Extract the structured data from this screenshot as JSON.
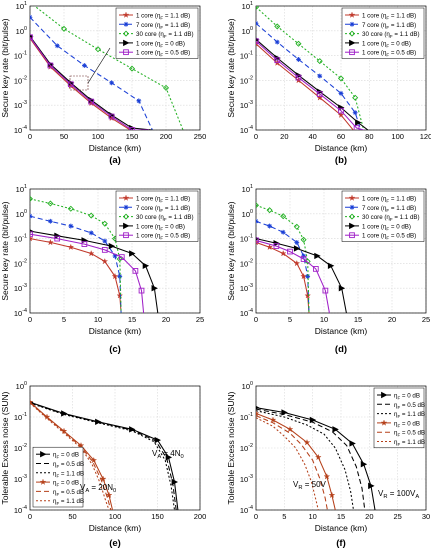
{
  "colors": {
    "red": "#c0392b",
    "blue": "#1a3fd6",
    "green": "#22b022",
    "black": "#000000",
    "purple": "#a020c8",
    "darkred": "#b5401a"
  },
  "chart_data": [
    {
      "panel": "(a)",
      "type": "line",
      "log_y": true,
      "grid": true,
      "legend": "top-right",
      "ylabel": "Secure key rate (bit/pulse)",
      "xlabel": "Distance (km)",
      "xlim": [
        0,
        250
      ],
      "ylim_exp": [
        -4,
        1
      ],
      "xticks": [
        "0",
        "50",
        "100",
        "150",
        "200",
        "250"
      ],
      "yticks": [
        "10^-4",
        "10^-3",
        "10^-2",
        "10^-1",
        "10^0",
        "10^1"
      ],
      "series": [
        {
          "name": "1 core (η_F = 1.1 dB)",
          "color": "#c0392b",
          "marker": "star",
          "dash": "",
          "x": [
            0,
            30,
            60,
            90,
            120,
            150,
            170
          ],
          "y": [
            0.5,
            0.035,
            0.006,
            0.0012,
            0.0003,
            9e-05,
            0.0001
          ]
        },
        {
          "name": "7 core (η_F = 1.1 dB)",
          "color": "#1a3fd6",
          "marker": "asterisk",
          "dash": "5,3",
          "x": [
            0,
            40,
            80,
            120,
            160,
            180
          ],
          "y": [
            3.5,
            0.25,
            0.04,
            0.008,
            0.0015,
            0.0001
          ]
        },
        {
          "name": "30 core (η_F = 1.1 dB)",
          "color": "#22b022",
          "marker": "diamond",
          "dash": "2,2",
          "x": [
            0,
            50,
            100,
            150,
            200,
            225
          ],
          "y": [
            14,
            1.2,
            0.18,
            0.03,
            0.005,
            0.0001
          ]
        },
        {
          "name": "1 core (η_F = 0 dB)",
          "color": "#000000",
          "marker": "triangle",
          "dash": "",
          "x": [
            0,
            30,
            60,
            90,
            120,
            150,
            180
          ],
          "y": [
            0.6,
            0.045,
            0.008,
            0.0016,
            0.0004,
            0.00012,
            0.0001
          ]
        },
        {
          "name": "1 core (η_F = 0.5 dB)",
          "color": "#a020c8",
          "marker": "square",
          "dash": "",
          "x": [
            0,
            30,
            60,
            90,
            120,
            150,
            175
          ],
          "y": [
            0.55,
            0.04,
            0.007,
            0.0014,
            0.00035,
            0.0001,
            0.0001
          ]
        }
      ]
    },
    {
      "panel": "(b)",
      "type": "line",
      "log_y": true,
      "grid": true,
      "legend": "top-right",
      "ylabel": "Secure key rate (bit/pulse)",
      "xlabel": "Distance (km)",
      "xlim": [
        0,
        120
      ],
      "ylim_exp": [
        -4,
        1
      ],
      "xticks": [
        "0",
        "20",
        "40",
        "60",
        "80",
        "100",
        "120"
      ],
      "yticks": [
        "10^-4",
        "10^-3",
        "10^-2",
        "10^-1",
        "10^0",
        "10^1"
      ],
      "series": [
        {
          "name": "1 core (η_F = 1.1 dB)",
          "color": "#c0392b",
          "marker": "star",
          "dash": "",
          "x": [
            0,
            15,
            30,
            45,
            60,
            70,
            73
          ],
          "y": [
            0.3,
            0.05,
            0.01,
            0.002,
            0.0004,
            8e-05,
            0.0001
          ]
        },
        {
          "name": "7 core (η_F = 1.1 dB)",
          "color": "#1a3fd6",
          "marker": "asterisk",
          "dash": "5,3",
          "x": [
            0,
            15,
            30,
            45,
            60,
            70,
            74
          ],
          "y": [
            2,
            0.35,
            0.07,
            0.015,
            0.003,
            0.0005,
            0.0001
          ]
        },
        {
          "name": "30 core (η_F = 1.1 dB)",
          "color": "#22b022",
          "marker": "diamond",
          "dash": "2,2",
          "x": [
            0,
            15,
            30,
            45,
            60,
            70,
            76
          ],
          "y": [
            9,
            1.5,
            0.3,
            0.06,
            0.012,
            0.002,
            0.0001
          ]
        },
        {
          "name": "1 core (η_F = 0 dB)",
          "color": "#000000",
          "marker": "triangle",
          "dash": "",
          "x": [
            0,
            15,
            30,
            45,
            60,
            72,
            79
          ],
          "y": [
            0.45,
            0.08,
            0.016,
            0.0035,
            0.0008,
            0.0002,
            0.0001
          ]
        },
        {
          "name": "1 core (η_F = 0.5 dB)",
          "color": "#a020c8",
          "marker": "square",
          "dash": "",
          "x": [
            0,
            15,
            30,
            45,
            60,
            71,
            76
          ],
          "y": [
            0.38,
            0.065,
            0.013,
            0.0028,
            0.0006,
            0.00012,
            0.0001
          ]
        }
      ]
    },
    {
      "panel": "(c)",
      "type": "line",
      "log_y": true,
      "grid": true,
      "legend": "top-right",
      "ylabel": "Secure key rate (bit/pulse)",
      "xlabel": "Distance (km)",
      "xlim": [
        0,
        25
      ],
      "ylim_exp": [
        -4,
        1
      ],
      "xticks": [
        "0",
        "5",
        "10",
        "15",
        "20",
        "25"
      ],
      "yticks": [
        "10^-4",
        "10^-3",
        "10^-2",
        "10^-1",
        "10^0",
        "10^1"
      ],
      "series": [
        {
          "name": "1 core (η_F = 1.1 dB)",
          "color": "#c0392b",
          "marker": "star",
          "dash": "",
          "x": [
            0,
            3,
            6,
            9,
            11,
            12.5,
            13.2,
            13.4
          ],
          "y": [
            0.1,
            0.07,
            0.045,
            0.025,
            0.012,
            0.003,
            0.0005,
            0.0001
          ]
        },
        {
          "name": "7 core (η_F = 1.1 dB)",
          "color": "#1a3fd6",
          "marker": "asterisk",
          "dash": "5,3",
          "x": [
            0,
            3,
            6,
            9,
            11,
            12.5,
            13.2,
            13.4
          ],
          "y": [
            0.8,
            0.5,
            0.32,
            0.17,
            0.08,
            0.02,
            0.003,
            0.0001
          ]
        },
        {
          "name": "30 core (η_F = 1.1 dB)",
          "color": "#22b022",
          "marker": "diamond",
          "dash": "2,2",
          "x": [
            0,
            3,
            6,
            9,
            11,
            12.5,
            13.2,
            13.4
          ],
          "y": [
            4,
            2.6,
            1.6,
            0.85,
            0.4,
            0.1,
            0.015,
            0.0001
          ]
        },
        {
          "name": "1 core (η_F = 0 dB)",
          "color": "#000000",
          "marker": "triangle",
          "dash": "",
          "x": [
            0,
            4,
            8,
            12,
            15,
            17,
            18.3,
            18.8
          ],
          "y": [
            0.2,
            0.13,
            0.085,
            0.05,
            0.025,
            0.008,
            0.001,
            0.0001
          ]
        },
        {
          "name": "1 core (η_F = 0.5 dB)",
          "color": "#a020c8",
          "marker": "square",
          "dash": "",
          "x": [
            0,
            4,
            8,
            11,
            13.5,
            15.5,
            16.4,
            16.7
          ],
          "y": [
            0.15,
            0.1,
            0.06,
            0.035,
            0.018,
            0.005,
            0.0008,
            0.0001
          ]
        }
      ]
    },
    {
      "panel": "(d)",
      "type": "line",
      "log_y": true,
      "grid": true,
      "legend": "top-right",
      "ylabel": "Secure key rate (bit/pulse)",
      "xlabel": "Distance (km)",
      "xlim": [
        0,
        25
      ],
      "ylim_exp": [
        -4,
        1
      ],
      "xticks": [
        "0",
        "5",
        "10",
        "15",
        "20",
        "25"
      ],
      "yticks": [
        "10^-4",
        "10^-3",
        "10^-2",
        "10^-1",
        "10^0",
        "10^1"
      ],
      "series": [
        {
          "name": "1 core (η_F = 1.1 dB)",
          "color": "#c0392b",
          "marker": "star",
          "dash": "",
          "x": [
            0,
            2,
            4,
            6,
            7,
            7.6,
            7.8
          ],
          "y": [
            0.07,
            0.045,
            0.025,
            0.01,
            0.003,
            0.0005,
            0.0001
          ]
        },
        {
          "name": "7 core (η_F = 1.1 dB)",
          "color": "#1a3fd6",
          "marker": "asterisk",
          "dash": "5,3",
          "x": [
            0,
            2,
            4,
            6,
            7,
            7.6,
            7.8
          ],
          "y": [
            0.5,
            0.32,
            0.18,
            0.07,
            0.02,
            0.003,
            0.0001
          ]
        },
        {
          "name": "30 core (η_F = 1.1 dB)",
          "color": "#22b022",
          "marker": "diamond",
          "dash": "2,2",
          "x": [
            0,
            2,
            4,
            6,
            7,
            7.6,
            7.8
          ],
          "y": [
            2.2,
            1.4,
            0.8,
            0.3,
            0.09,
            0.012,
            0.0001
          ]
        },
        {
          "name": "1 core (η_F = 0 dB)",
          "color": "#000000",
          "marker": "triangle",
          "dash": "",
          "x": [
            0,
            3,
            6,
            9,
            11,
            12.6,
            13.3
          ],
          "y": [
            0.1,
            0.065,
            0.04,
            0.02,
            0.008,
            0.001,
            0.0001
          ]
        },
        {
          "name": "1 core (η_F = 0.5 dB)",
          "color": "#a020c8",
          "marker": "square",
          "dash": "",
          "x": [
            0,
            3,
            5,
            7,
            8.8,
            10.2,
            10.8
          ],
          "y": [
            0.085,
            0.05,
            0.03,
            0.015,
            0.006,
            0.0008,
            0.0001
          ]
        }
      ]
    },
    {
      "panel": "(e)",
      "type": "line",
      "log_y": true,
      "grid": true,
      "legend": "bottom-left",
      "ylabel": "Tolerable Excess noise (SUN)",
      "xlabel": "Distance (km)",
      "xlim": [
        0,
        200
      ],
      "ylim_exp": [
        -4,
        0
      ],
      "xticks": [
        "0",
        "50",
        "100",
        "150",
        "200"
      ],
      "yticks": [
        "10^-4",
        "10^-3",
        "10^-2",
        "10^-1",
        "10^0"
      ],
      "annotations": [
        "V_A = 4N_0",
        "V_A = 20N_0"
      ],
      "series": [
        {
          "name": "η_F = 0 dB",
          "color": "#000000",
          "marker": "triangle",
          "dash": "",
          "x": [
            0,
            40,
            80,
            120,
            150,
            163,
            170,
            174
          ],
          "y": [
            0.3,
            0.13,
            0.07,
            0.04,
            0.018,
            0.005,
            0.0008,
            0.0001
          ]
        },
        {
          "name": "η_F = 0.5 dB",
          "color": "#000000",
          "marker": "",
          "dash": "5,3",
          "x": [
            0,
            40,
            80,
            120,
            148,
            161,
            168,
            172
          ],
          "y": [
            0.29,
            0.125,
            0.068,
            0.038,
            0.017,
            0.0045,
            0.0007,
            0.0001
          ]
        },
        {
          "name": "η_F = 1.1 dB",
          "color": "#000000",
          "marker": "",
          "dash": "2,2",
          "x": [
            0,
            40,
            80,
            120,
            146,
            159,
            166,
            170
          ],
          "y": [
            0.28,
            0.12,
            0.065,
            0.036,
            0.016,
            0.004,
            0.0006,
            0.0001
          ]
        },
        {
          "name": "η_F = 0 dB",
          "color": "#b5401a",
          "marker": "star",
          "dash": "",
          "x": [
            0,
            20,
            40,
            60,
            75,
            86,
            93,
            97
          ],
          "y": [
            0.3,
            0.1,
            0.035,
            0.012,
            0.004,
            0.001,
            0.0003,
            0.0001
          ]
        },
        {
          "name": "η_F = 0.5 dB",
          "color": "#b5401a",
          "marker": "",
          "dash": "5,3",
          "x": [
            0,
            20,
            40,
            60,
            74,
            84,
            91,
            95
          ],
          "y": [
            0.29,
            0.095,
            0.033,
            0.011,
            0.0035,
            0.0009,
            0.00025,
            0.0001
          ]
        },
        {
          "name": "η_F = 1.1 dB",
          "color": "#b5401a",
          "marker": "",
          "dash": "2,2",
          "x": [
            0,
            20,
            40,
            60,
            73,
            82,
            89,
            93
          ],
          "y": [
            0.28,
            0.09,
            0.03,
            0.01,
            0.003,
            0.0008,
            0.0002,
            0.0001
          ]
        }
      ]
    },
    {
      "panel": "(f)",
      "type": "line",
      "log_y": true,
      "grid": true,
      "legend": "top-right",
      "ylabel": "Tolerable Excess noise (SUN)",
      "xlabel": "Distance (km)",
      "xlim": [
        0,
        30
      ],
      "ylim_exp": [
        -4,
        0
      ],
      "xticks": [
        "0",
        "5",
        "10",
        "15",
        "20",
        "25",
        "30"
      ],
      "yticks": [
        "10^-4",
        "10^-3",
        "10^-2",
        "10^-1",
        "10^0"
      ],
      "annotations": [
        "V_R = 50V",
        "V_R = 100V_A"
      ],
      "series": [
        {
          "name": "η_F = 0 dB",
          "color": "#000000",
          "marker": "triangle",
          "dash": "",
          "x": [
            0,
            5,
            10,
            14,
            17,
            19,
            20.3,
            21
          ],
          "y": [
            0.2,
            0.14,
            0.08,
            0.04,
            0.014,
            0.003,
            0.0006,
            0.0001
          ]
        },
        {
          "name": "η_F = 0.5 dB",
          "color": "#000000",
          "marker": "",
          "dash": "5,3",
          "x": [
            0,
            5,
            10,
            13.5,
            16,
            17.7,
            18.7,
            19.2
          ],
          "y": [
            0.18,
            0.12,
            0.068,
            0.033,
            0.012,
            0.0025,
            0.0005,
            0.0001
          ]
        },
        {
          "name": "η_F = 1.1 dB",
          "color": "#000000",
          "marker": "",
          "dash": "2,2",
          "x": [
            0,
            5,
            9,
            12,
            14,
            15.7,
            16.7,
            17.2
          ],
          "y": [
            0.16,
            0.1,
            0.055,
            0.028,
            0.01,
            0.002,
            0.0004,
            0.0001
          ]
        },
        {
          "name": "η_F = 0 dB",
          "color": "#b5401a",
          "marker": "star",
          "dash": "",
          "x": [
            0,
            3,
            6,
            9,
            11,
            12.5,
            13.4,
            14
          ],
          "y": [
            0.13,
            0.08,
            0.04,
            0.015,
            0.005,
            0.0012,
            0.0003,
            0.0001
          ]
        },
        {
          "name": "η_F = 0.5 dB",
          "color": "#b5401a",
          "marker": "",
          "dash": "5,3",
          "x": [
            0,
            3,
            6,
            8,
            10,
            11.3,
            12.2,
            12.6
          ],
          "y": [
            0.11,
            0.065,
            0.03,
            0.013,
            0.004,
            0.001,
            0.00025,
            0.0001
          ]
        },
        {
          "name": "η_F = 1.1 dB",
          "color": "#b5401a",
          "marker": "",
          "dash": "2,2",
          "x": [
            0,
            3,
            5,
            7,
            8.6,
            9.8,
            10.6,
            11
          ],
          "y": [
            0.095,
            0.05,
            0.024,
            0.01,
            0.003,
            0.0008,
            0.0002,
            0.0001
          ]
        }
      ]
    }
  ]
}
